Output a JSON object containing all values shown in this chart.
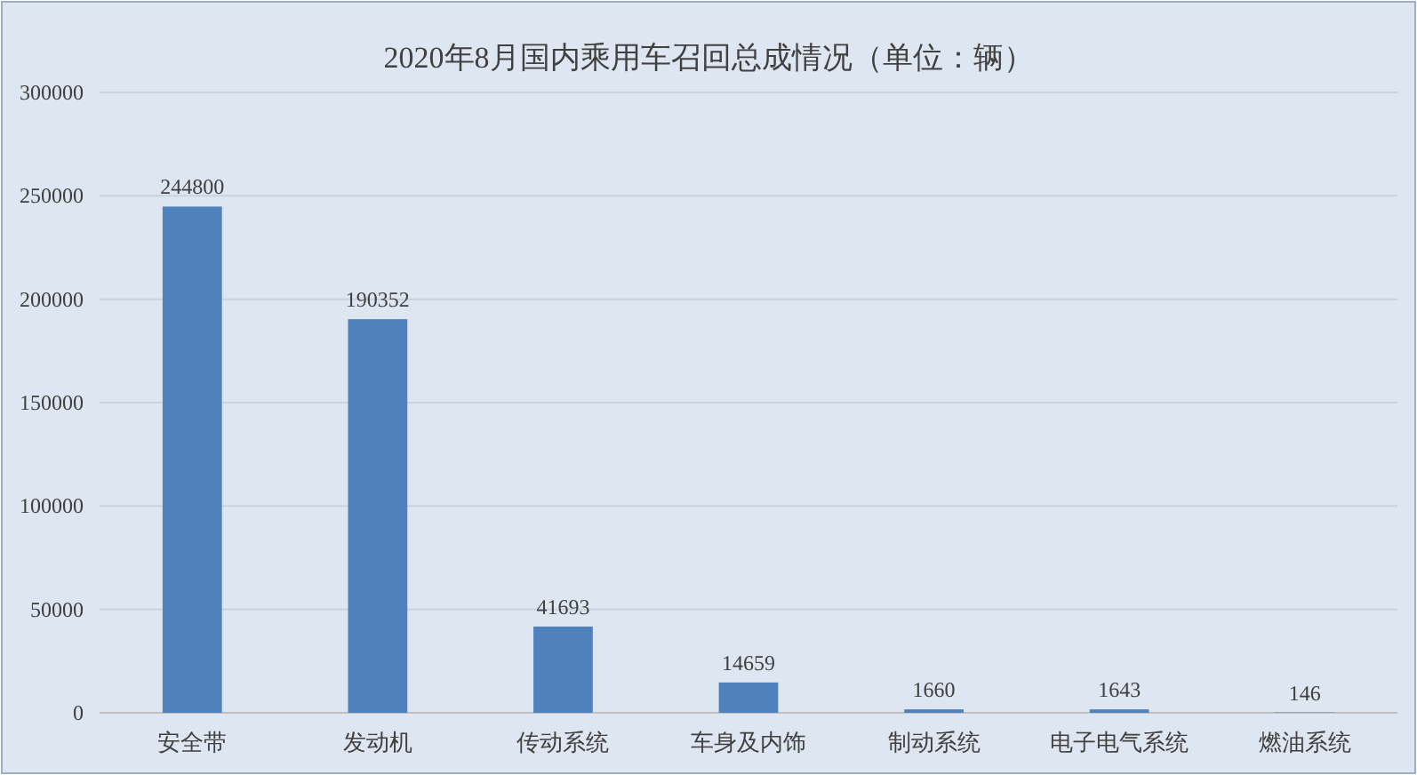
{
  "chart_data": {
    "type": "bar",
    "title": "2020年8月国内乘用车召回总成情况（单位：辆）",
    "categories": [
      "安全带",
      "发动机",
      "传动系统",
      "车身及内饰",
      "制动系统",
      "电子电气系统",
      "燃油系统"
    ],
    "values": [
      244800,
      190352,
      41693,
      14659,
      1660,
      1643,
      146
    ],
    "color": "#4f81bd",
    "ylim": [
      0,
      300000
    ],
    "yticks": [
      0,
      50000,
      100000,
      150000,
      200000,
      250000,
      300000
    ],
    "grid": "y",
    "data_labels": true
  }
}
